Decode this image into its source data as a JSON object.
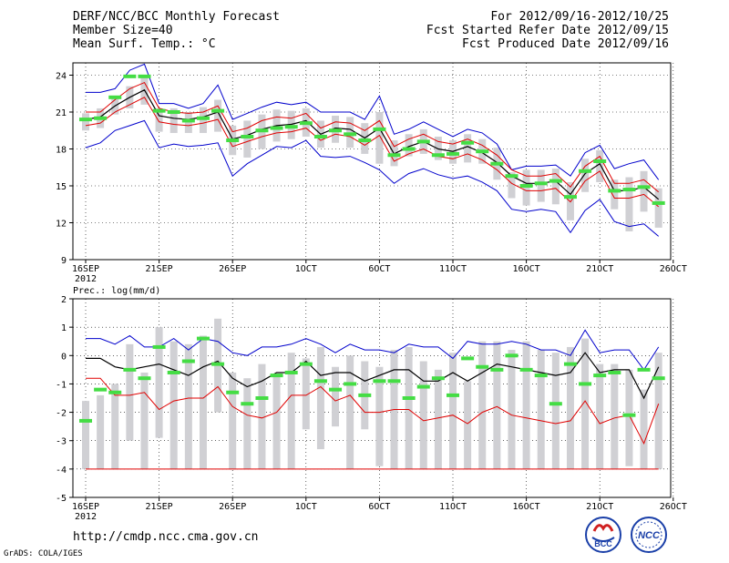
{
  "header": {
    "title": "DERF/NCC/BCC Monthly Forecast",
    "member_size": "Member Size=40",
    "temp_label": "Mean Surf. Temp.: °C",
    "period": "For 2012/09/16-2012/10/25",
    "fcst_started": "Fcst Started Refer Date 2012/09/15",
    "fcst_produced": "Fcst Produced Date 2012/09/16"
  },
  "footer": {
    "url": "http://cmdp.ncc.cma.gov.cn",
    "grads": "GrADS: COLA/IGES",
    "logo1_text": "BCC",
    "logo2_text": "NCC"
  },
  "colors": {
    "ensemble_mean": "#000000",
    "spread_inner": "#e00000",
    "spread_outer": "#0000cc",
    "observed": "#44dd44",
    "bars": "#d0d0d4"
  },
  "chart_data": [
    {
      "type": "line",
      "title": "Mean Surf. Temp.: °C",
      "ylim": [
        9,
        25
      ],
      "yticks": [
        9,
        12,
        15,
        18,
        21,
        24
      ],
      "x_tick_labels": [
        {
          "day": 0,
          "label": "16SEP",
          "sub": "2012"
        },
        {
          "day": 5,
          "label": "21SEP"
        },
        {
          "day": 10,
          "label": "26SEP"
        },
        {
          "day": 15,
          "label": "1OCT"
        },
        {
          "day": 20,
          "label": "6OCT"
        },
        {
          "day": 25,
          "label": "11OCT"
        },
        {
          "day": 30,
          "label": "16OCT"
        },
        {
          "day": 35,
          "label": "21OCT"
        },
        {
          "day": 40,
          "label": "26OCT"
        }
      ],
      "mean": [
        20.4,
        20.6,
        21.5,
        22.2,
        22.8,
        20.7,
        20.5,
        20.4,
        20.6,
        21.0,
        18.8,
        19.1,
        19.6,
        19.9,
        20.0,
        20.3,
        19.2,
        19.7,
        19.6,
        18.9,
        19.7,
        17.6,
        18.2,
        18.6,
        18.0,
        17.8,
        18.2,
        17.7,
        16.9,
        15.8,
        15.2,
        15.2,
        15.4,
        14.3,
        16.0,
        16.8,
        14.6,
        14.6,
        14.9,
        13.9
      ],
      "outer_upper": [
        22.6,
        22.6,
        22.9,
        24.4,
        24.9,
        21.7,
        21.7,
        21.3,
        21.7,
        23.2,
        20.4,
        20.9,
        21.4,
        21.8,
        21.6,
        21.8,
        21.0,
        21.0,
        21.0,
        20.4,
        22.3,
        19.2,
        19.6,
        20.2,
        19.6,
        19.0,
        19.6,
        19.3,
        18.4,
        16.3,
        16.6,
        16.6,
        16.7,
        15.8,
        17.7,
        18.3,
        16.4,
        16.8,
        17.1,
        15.5
      ],
      "inner_upper": [
        21.0,
        21.0,
        22.0,
        22.9,
        23.4,
        21.3,
        21.0,
        20.9,
        21.0,
        21.5,
        19.4,
        19.7,
        20.3,
        20.6,
        20.5,
        20.9,
        19.7,
        20.2,
        20.1,
        19.5,
        20.3,
        18.2,
        18.8,
        19.2,
        18.6,
        18.4,
        18.8,
        18.3,
        17.5,
        16.3,
        15.8,
        15.8,
        16.0,
        14.9,
        16.6,
        17.4,
        15.2,
        15.2,
        15.5,
        14.5
      ],
      "inner_lower": [
        19.9,
        20.1,
        21.0,
        21.6,
        22.2,
        20.2,
        20.0,
        19.9,
        20.1,
        20.4,
        18.2,
        18.6,
        19.0,
        19.3,
        19.4,
        19.7,
        18.7,
        19.2,
        19.0,
        18.3,
        19.1,
        17.0,
        17.6,
        18.0,
        17.4,
        17.2,
        17.6,
        17.1,
        16.3,
        15.2,
        14.6,
        14.6,
        14.8,
        13.7,
        15.4,
        16.2,
        14.0,
        14.0,
        14.3,
        13.3
      ],
      "outer_lower": [
        18.1,
        18.5,
        19.5,
        19.9,
        20.3,
        18.1,
        18.4,
        18.2,
        18.3,
        18.5,
        15.8,
        16.8,
        17.5,
        18.2,
        18.1,
        18.7,
        17.4,
        17.3,
        17.4,
        16.9,
        16.3,
        15.2,
        16.0,
        16.4,
        15.9,
        15.6,
        15.8,
        15.3,
        14.6,
        13.1,
        12.9,
        13.1,
        12.9,
        11.2,
        13.0,
        13.9,
        12.1,
        11.7,
        11.9,
        10.9
      ],
      "box_top": [
        20.9,
        21.3,
        22.3,
        23.1,
        23.9,
        21.3,
        21.3,
        21.0,
        21.4,
        22.0,
        19.9,
        20.3,
        20.8,
        21.2,
        21.1,
        21.3,
        20.3,
        20.7,
        20.6,
        20.1,
        21.0,
        18.7,
        19.2,
        19.6,
        19.0,
        18.7,
        19.2,
        18.8,
        18.1,
        16.1,
        16.3,
        16.3,
        16.4,
        15.3,
        17.2,
        17.9,
        15.5,
        15.7,
        16.2,
        14.8
      ],
      "box_bottom": [
        19.5,
        19.7,
        20.8,
        21.3,
        21.6,
        19.4,
        19.3,
        19.3,
        19.3,
        19.4,
        17.5,
        17.3,
        18.0,
        18.6,
        18.8,
        19.0,
        18.1,
        18.5,
        18.1,
        17.6,
        16.8,
        16.6,
        17.4,
        17.6,
        17.1,
        16.8,
        16.9,
        16.8,
        15.5,
        14.0,
        13.4,
        13.7,
        13.5,
        12.2,
        14.5,
        15.3,
        13.1,
        11.3,
        12.9,
        11.6
      ],
      "observed": [
        20.4,
        20.5,
        22.2,
        23.9,
        23.9,
        21.1,
        21.0,
        20.3,
        20.5,
        21.1,
        18.7,
        19.0,
        19.5,
        19.7,
        19.8,
        20.1,
        19.0,
        19.5,
        19.2,
        18.7,
        19.6,
        17.5,
        18.0,
        18.6,
        17.5,
        17.6,
        18.5,
        17.8,
        16.8,
        15.8,
        15.0,
        15.2,
        15.4,
        14.1,
        16.2,
        17.0,
        14.6,
        14.7,
        14.9,
        13.6
      ]
    },
    {
      "type": "line",
      "title": "Prec.: log(mm/d)",
      "ylim": [
        -5,
        2
      ],
      "yticks": [
        -5,
        -4,
        -3,
        -2,
        -1,
        0,
        1,
        2
      ],
      "x_tick_labels": [
        {
          "day": 0,
          "label": "16SEP",
          "sub": "2012"
        },
        {
          "day": 5,
          "label": "21SEP"
        },
        {
          "day": 10,
          "label": "26SEP"
        },
        {
          "day": 15,
          "label": "1OCT"
        },
        {
          "day": 20,
          "label": "6OCT"
        },
        {
          "day": 25,
          "label": "11OCT"
        },
        {
          "day": 30,
          "label": "16OCT"
        },
        {
          "day": 35,
          "label": "21OCT"
        },
        {
          "day": 40,
          "label": "26OCT"
        }
      ],
      "mean": [
        -0.1,
        -0.1,
        -0.4,
        -0.5,
        -0.4,
        -0.3,
        -0.5,
        -0.7,
        -0.4,
        -0.2,
        -0.8,
        -1.1,
        -0.9,
        -0.6,
        -0.6,
        -0.2,
        -0.7,
        -0.6,
        -0.6,
        -0.9,
        -0.7,
        -0.5,
        -0.5,
        -0.9,
        -0.9,
        -0.6,
        -0.9,
        -0.6,
        -0.3,
        -0.4,
        -0.5,
        -0.6,
        -0.7,
        -0.6,
        0.1,
        -0.6,
        -0.5,
        -0.5,
        -1.5,
        -0.4
      ],
      "outer_upper": [
        0.6,
        0.6,
        0.4,
        0.7,
        0.3,
        0.3,
        0.6,
        0.2,
        0.6,
        0.5,
        0.1,
        0.0,
        0.3,
        0.3,
        0.4,
        0.6,
        0.4,
        0.1,
        0.4,
        0.2,
        0.2,
        0.1,
        0.4,
        0.3,
        0.3,
        -0.1,
        0.5,
        0.4,
        0.4,
        0.5,
        0.4,
        0.2,
        0.2,
        0.0,
        0.9,
        0.1,
        0.2,
        0.2,
        -0.5,
        0.3
      ],
      "inner_lower": [
        -0.8,
        -0.8,
        -1.4,
        -1.4,
        -1.3,
        -1.9,
        -1.6,
        -1.5,
        -1.5,
        -1.1,
        -1.8,
        -2.1,
        -2.2,
        -2.0,
        -1.4,
        -1.4,
        -1.1,
        -1.6,
        -1.4,
        -2.0,
        -2.0,
        -1.9,
        -1.9,
        -2.3,
        -2.2,
        -2.1,
        -2.4,
        -2.0,
        -1.8,
        -2.1,
        -2.2,
        -2.3,
        -2.4,
        -2.3,
        -1.6,
        -2.4,
        -2.2,
        -2.1,
        -3.1,
        -1.7
      ],
      "outer_lower": [
        -4,
        -4,
        -4,
        -4,
        -4,
        -4,
        -4,
        -4,
        -4,
        -4,
        -4,
        -4,
        -4,
        -4,
        -4,
        -4,
        -4,
        -4,
        -4,
        -4,
        -4,
        -4,
        -4,
        -4,
        -4,
        -4,
        -4,
        -4,
        -4,
        -4,
        -4,
        -4,
        -4,
        -4,
        -4,
        -4,
        -4,
        -4,
        -4,
        -4
      ],
      "box_top": [
        -1.6,
        -1.4,
        -1.0,
        0.4,
        -0.6,
        1.0,
        0.5,
        0.4,
        0.7,
        1.3,
        -0.6,
        -0.8,
        -0.3,
        -0.7,
        0.1,
        -0.1,
        0.3,
        -0.4,
        0.0,
        -0.2,
        -0.4,
        0.2,
        0.3,
        -0.2,
        -0.5,
        0.1,
        -0.9,
        0.5,
        0.5,
        0.2,
        0.5,
        0.2,
        0.1,
        0.3,
        0.6,
        -0.3,
        -0.3,
        -0.5,
        -1.2,
        0.1
      ],
      "box_bottom": [
        -4,
        -4,
        -4,
        -3.0,
        -4,
        -2.9,
        -4,
        -4,
        -4,
        -2.0,
        -4,
        -4,
        -4,
        -4,
        -4,
        -2.6,
        -3.3,
        -2.5,
        -4,
        -2.6,
        -3.9,
        -4,
        -4,
        -4,
        -4,
        -4,
        -4,
        -4,
        -4,
        -4,
        -4,
        -4,
        -4,
        -4,
        -4,
        -4,
        -4,
        -3.9,
        -4,
        -4
      ],
      "observed": [
        -2.3,
        -1.2,
        -1.3,
        -0.5,
        -0.8,
        0.3,
        -0.6,
        -0.2,
        0.6,
        -0.3,
        -1.3,
        -1.7,
        -1.5,
        -0.7,
        -0.6,
        -0.3,
        -0.9,
        -1.2,
        -1.0,
        -1.4,
        -0.9,
        -0.9,
        -1.5,
        -1.1,
        -0.8,
        -1.4,
        -0.1,
        -0.4,
        -0.5,
        0.0,
        -0.5,
        -0.7,
        -1.7,
        -0.3,
        -1.0,
        -0.7,
        -0.6,
        -2.1,
        -0.5,
        -0.8
      ]
    }
  ]
}
